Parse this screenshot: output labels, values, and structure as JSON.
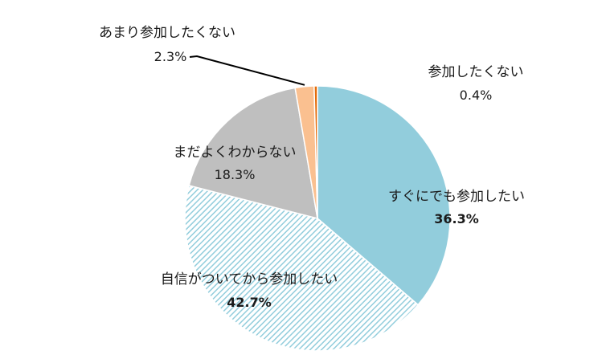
{
  "chart_data": {
    "type": "pie",
    "start_angle_deg": 0,
    "direction": "clockwise",
    "slices": [
      {
        "label": "すぐにでも参加したい",
        "value": 36.3,
        "value_label": "36.3%",
        "color": "#92CDDC",
        "pattern": "solid",
        "value_bold": true
      },
      {
        "label": "自信がついてから参加したい",
        "value": 42.7,
        "value_label": "42.7%",
        "color": "#92CDDC",
        "pattern": "diagonal-hatch",
        "value_bold": true
      },
      {
        "label": "まだよくわからない",
        "value": 18.3,
        "value_label": "18.3%",
        "color": "#BFBFBF",
        "pattern": "solid",
        "value_bold": false
      },
      {
        "label": "あまり参加したくない",
        "value": 2.3,
        "value_label": "2.3%",
        "color": "#FAC090",
        "pattern": "solid",
        "value_bold": false
      },
      {
        "label": "参加したくない",
        "value": 0.4,
        "value_label": "0.4%",
        "color": "#E46C0A",
        "pattern": "solid",
        "value_bold": false
      }
    ]
  }
}
